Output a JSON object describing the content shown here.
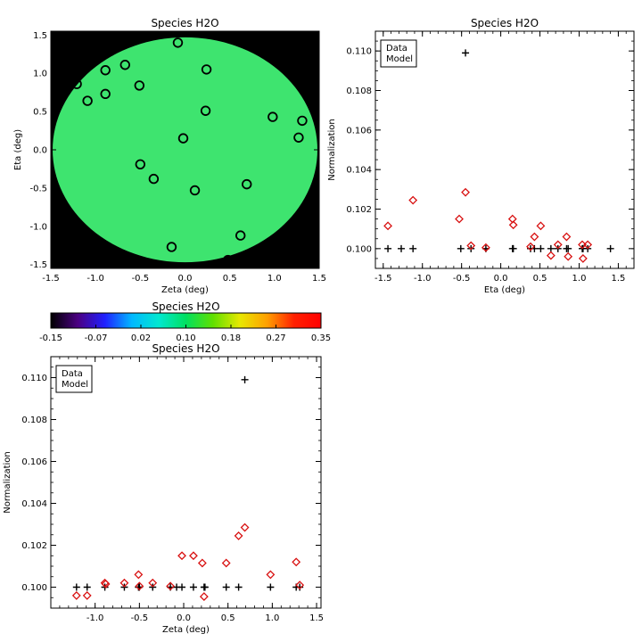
{
  "chart_data": [
    {
      "type": "map",
      "title": "Species H2O",
      "xlabel": "Zeta (deg)",
      "ylabel": "Eta (deg)",
      "xlim": [
        -1.5,
        1.5
      ],
      "ylim": [
        -1.55,
        1.55
      ],
      "xticks": [
        "-1.5",
        "-1.0",
        "-0.5",
        "0.0",
        "0.5",
        "1.0",
        "1.5"
      ],
      "yticks": [
        "-1.5",
        "-1.0",
        "-0.5",
        "0.0",
        "0.5",
        "1.0",
        "1.5"
      ],
      "background_color": "#000000",
      "disk_color": "#3ee46f",
      "points": [
        {
          "x": -0.08,
          "y": 1.4
        },
        {
          "x": -1.21,
          "y": 0.86
        },
        {
          "x": -0.89,
          "y": 1.04
        },
        {
          "x": -0.67,
          "y": 1.11
        },
        {
          "x": 0.24,
          "y": 1.05
        },
        {
          "x": -1.09,
          "y": 0.64
        },
        {
          "x": -0.89,
          "y": 0.73
        },
        {
          "x": -0.51,
          "y": 0.84
        },
        {
          "x": 0.23,
          "y": 0.51
        },
        {
          "x": 0.98,
          "y": 0.43
        },
        {
          "x": 1.31,
          "y": 0.38
        },
        {
          "x": 1.27,
          "y": 0.16
        },
        {
          "x": -0.02,
          "y": 0.15
        },
        {
          "x": -0.5,
          "y": -0.19
        },
        {
          "x": -0.35,
          "y": -0.38
        },
        {
          "x": 0.11,
          "y": -0.53
        },
        {
          "x": 0.69,
          "y": -0.45
        },
        {
          "x": -0.15,
          "y": -1.27
        },
        {
          "x": 0.62,
          "y": -1.12
        },
        {
          "x": 0.48,
          "y": -1.44
        }
      ]
    },
    {
      "type": "colorbar",
      "title": "Species H2O",
      "ticks": [
        "-0.15",
        "-0.07",
        "0.02",
        "0.10",
        "0.18",
        "0.27",
        "0.35"
      ],
      "colors": [
        "#000000",
        "#4b0082",
        "#2020ff",
        "#00b8ff",
        "#00e8d0",
        "#00e060",
        "#60e000",
        "#e8e800",
        "#ffa000",
        "#ff2000",
        "#ff0000"
      ]
    },
    {
      "type": "scatter",
      "title": "Species H2O",
      "xlabel": "Eta (deg)",
      "ylabel": "Normalization",
      "xlim": [
        -1.6,
        1.7
      ],
      "ylim": [
        0.099,
        0.111
      ],
      "xticks": [
        "-1.5",
        "-1.0",
        "-0.5",
        "0.0",
        "0.5",
        "1.0",
        "1.5"
      ],
      "yticks": [
        "0.100",
        "0.102",
        "0.104",
        "0.106",
        "0.108",
        "0.110"
      ],
      "legend": {
        "entries": [
          "Data",
          "Model"
        ],
        "colors": [
          "#000000",
          "#d81010"
        ],
        "position": "top-left"
      },
      "series": [
        {
          "name": "Data",
          "marker": "plus",
          "color": "#000000",
          "x": [
            -1.44,
            -1.27,
            -1.12,
            -0.51,
            -0.45,
            -0.38,
            -0.19,
            0.15,
            0.16,
            0.38,
            0.43,
            0.51,
            0.64,
            0.73,
            0.84,
            0.86,
            1.04,
            1.05,
            1.11,
            1.4
          ],
          "y": [
            0.1,
            0.1,
            0.1,
            0.1,
            0.1099,
            0.1,
            0.1,
            0.1,
            0.1,
            0.1,
            0.1,
            0.1,
            0.1,
            0.1,
            0.1,
            0.1,
            0.1,
            0.1,
            0.1,
            0.1
          ]
        },
        {
          "name": "Model",
          "marker": "diamond",
          "color": "#d81010",
          "x": [
            -1.44,
            -1.12,
            -0.53,
            -0.45,
            -0.38,
            -0.19,
            0.15,
            0.16,
            0.38,
            0.43,
            0.51,
            0.64,
            0.73,
            0.84,
            0.86,
            1.04,
            1.05,
            1.11
          ],
          "y": [
            0.10115,
            0.10245,
            0.1015,
            0.10285,
            0.10015,
            0.10005,
            0.1015,
            0.1012,
            0.1001,
            0.1006,
            0.10115,
            0.09965,
            0.1002,
            0.1006,
            0.0996,
            0.1002,
            0.0995,
            0.1002
          ]
        }
      ]
    },
    {
      "type": "scatter",
      "title": "Species H2O",
      "xlabel": "Zeta (deg)",
      "ylabel": "Normalization",
      "xlim": [
        -1.5,
        1.55
      ],
      "ylim": [
        0.099,
        0.111
      ],
      "xticks": [
        "-1.0",
        "-0.5",
        "0.0",
        "0.5",
        "1.0",
        "1.5"
      ],
      "yticks": [
        "0.100",
        "0.102",
        "0.104",
        "0.106",
        "0.108",
        "0.110"
      ],
      "legend": {
        "entries": [
          "Data",
          "Model"
        ],
        "colors": [
          "#000000",
          "#d81010"
        ],
        "position": "top-left"
      },
      "series": [
        {
          "name": "Data",
          "marker": "plus",
          "color": "#000000",
          "x": [
            -1.21,
            -1.09,
            -0.89,
            -0.67,
            -0.51,
            -0.5,
            -0.35,
            -0.15,
            -0.08,
            -0.02,
            0.11,
            0.23,
            0.24,
            0.48,
            0.62,
            0.69,
            0.98,
            1.27,
            1.31
          ],
          "y": [
            0.1,
            0.1,
            0.1,
            0.1,
            0.1,
            0.1,
            0.1,
            0.1,
            0.1,
            0.1,
            0.1,
            0.1,
            0.1,
            0.1,
            0.1,
            0.1099,
            0.1,
            0.1,
            0.1
          ]
        },
        {
          "name": "Model",
          "marker": "diamond",
          "color": "#d81010",
          "x": [
            -1.21,
            -1.09,
            -0.89,
            -0.88,
            -0.67,
            -0.51,
            -0.5,
            -0.35,
            -0.15,
            -0.02,
            0.11,
            0.21,
            0.23,
            0.48,
            0.62,
            0.69,
            0.98,
            1.27,
            1.31
          ],
          "y": [
            0.0996,
            0.0996,
            0.1002,
            0.10015,
            0.1002,
            0.1006,
            0.10005,
            0.1002,
            0.10005,
            0.1015,
            0.1015,
            0.10115,
            0.09955,
            0.10115,
            0.10245,
            0.10285,
            0.1006,
            0.1012,
            0.1001
          ]
        }
      ]
    }
  ]
}
